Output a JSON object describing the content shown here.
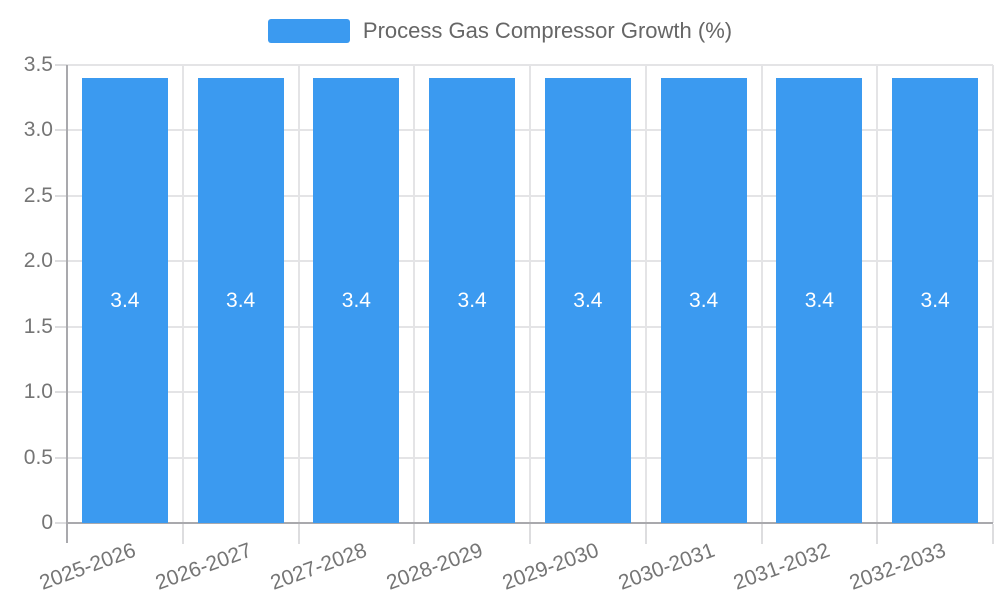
{
  "legend": {
    "label": "Process Gas Compressor Growth (%)"
  },
  "chart_data": {
    "type": "bar",
    "title": "Process Gas Compressor Growth (%)",
    "series_name": "Process Gas Compressor Growth (%)",
    "categories": [
      "2025-2026",
      "2026-2027",
      "2027-2028",
      "2028-2029",
      "2029-2030",
      "2030-2031",
      "2031-2032",
      "2032-2033"
    ],
    "values": [
      3.4,
      3.4,
      3.4,
      3.4,
      3.4,
      3.4,
      3.4,
      3.4
    ],
    "bar_value_labels": [
      "3.4",
      "3.4",
      "3.4",
      "3.4",
      "3.4",
      "3.4",
      "3.4",
      "3.4"
    ],
    "xlabel": "",
    "ylabel": "",
    "ylim": [
      0,
      3.5
    ],
    "yticks": [
      0,
      0.5,
      1,
      1.5,
      2,
      2.5,
      3,
      3.5
    ],
    "ytick_labels": [
      "0",
      "0.5",
      "1.0",
      "1.5",
      "2.0",
      "2.5",
      "3.0",
      "3.5"
    ],
    "grid": "on",
    "legend_position": "top-center",
    "x_label_rotation_deg": -20,
    "colors": {
      "bar": "#3b9af0",
      "bar_value_text": "#ffffff",
      "axis_line": "#a9a9ad",
      "grid_line": "#e4e4e6",
      "tick_mark": "#dddddf",
      "tick_label_text": "#757575",
      "legend_text": "#666666",
      "background": "#ffffff"
    }
  }
}
